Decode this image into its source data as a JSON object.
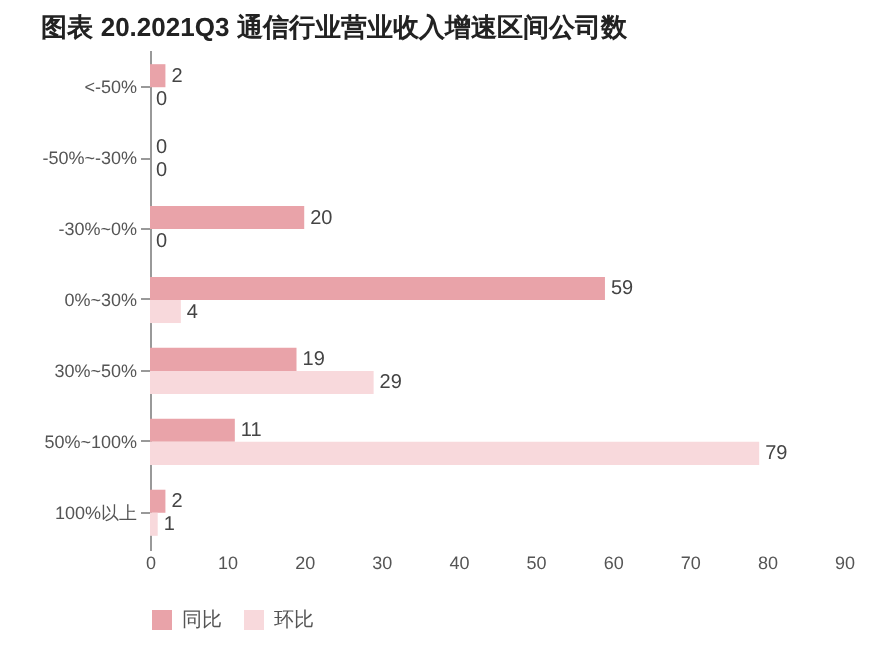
{
  "chart_data": {
    "type": "bar",
    "orientation": "horizontal",
    "title": "图表 20.2021Q3 通信行业营业收入增速区间公司数",
    "categories": [
      "<-50%",
      "-50%~-30%",
      "-30%~0%",
      "0%~30%",
      "30%~50%",
      "50%~100%",
      "100%以上"
    ],
    "series": [
      {
        "name": "同比",
        "color": "#e9a3a9",
        "values": [
          2,
          0,
          20,
          59,
          19,
          11,
          2
        ]
      },
      {
        "name": "环比",
        "color": "#f8d9dc",
        "values": [
          0,
          0,
          0,
          4,
          29,
          79,
          1
        ]
      }
    ],
    "xlim": [
      0,
      90
    ],
    "xticks": [
      0,
      10,
      20,
      30,
      40,
      50,
      60,
      70,
      80,
      90
    ],
    "data_labels": true,
    "legend": "bottom",
    "grid": false
  }
}
